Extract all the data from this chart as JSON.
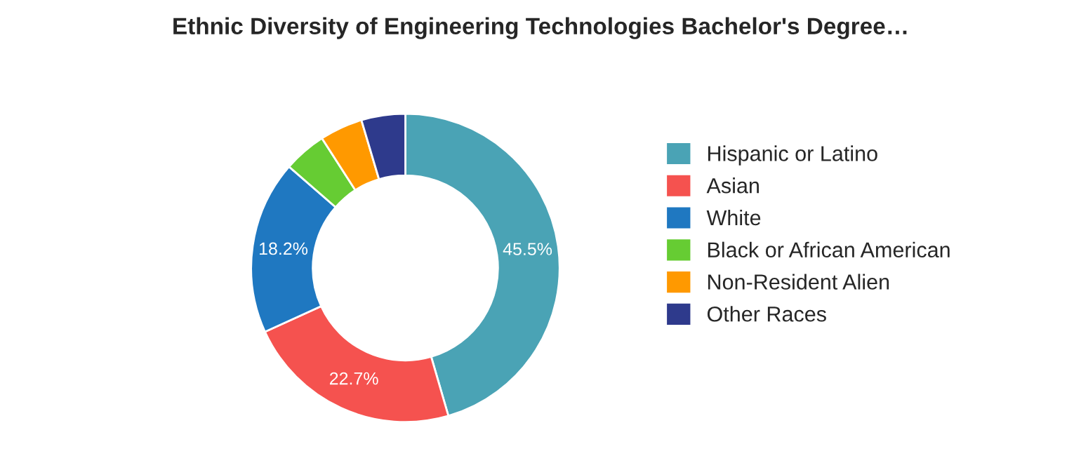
{
  "chart_data": {
    "type": "donut",
    "title": "Ethnic Diversity of Engineering Technologies Bachelor's Degree…",
    "categories": [
      "Hispanic or Latino",
      "Asian",
      "White",
      "Black or African American",
      "Non-Resident Alien",
      "Other Races"
    ],
    "values": [
      45.5,
      22.7,
      18.2,
      4.5,
      4.5,
      4.6
    ],
    "value_labels": [
      "45.5%",
      "22.7%",
      "18.2%",
      null,
      null,
      null
    ],
    "colors": [
      "#4aa3b5",
      "#f5524f",
      "#1f78c1",
      "#66cc33",
      "#ff9900",
      "#2e3a8c"
    ],
    "legend": "right"
  }
}
